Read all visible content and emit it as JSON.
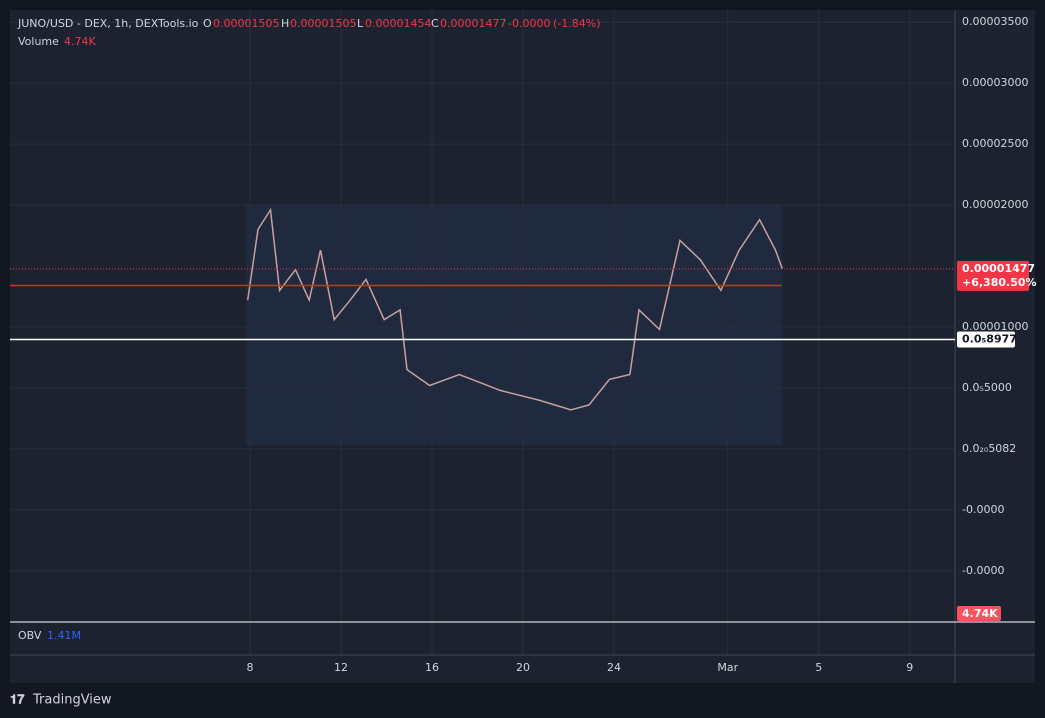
{
  "chart_data": {
    "type": "line",
    "legend": {
      "symbol": "JUNO/USD - DEX, 1h, DEXTools.io",
      "o_label": "O",
      "open": "0.00001505",
      "h_label": "H",
      "high": "0.00001505",
      "l_label": "L",
      "low": "0.00001454",
      "c_label": "C",
      "close": "0.00001477",
      "change": "-0.0000",
      "change_pct": "(-1.84%)",
      "volume_label": "Volume",
      "volume": "4.74K",
      "obv_label": "OBV",
      "obv": "1.41M"
    },
    "brand": "TradingView",
    "x": [
      7.9,
      8.35,
      8.9,
      9.3,
      10.0,
      10.6,
      11.1,
      11.7,
      12.4,
      13.1,
      13.9,
      14.6,
      14.9,
      15.9,
      17.2,
      19.0,
      20.7,
      22.1,
      22.9,
      23.8,
      24.7,
      25.1,
      26.0,
      26.9,
      27.8,
      28.7,
      29.5,
      30.4,
      31.1,
      31.4
    ],
    "series": [
      {
        "name": "JUNO/USD",
        "color": "#c8a0a0",
        "values": [
          1.22e-05,
          1.8e-05,
          1.96e-05,
          1.3e-05,
          1.47e-05,
          1.22e-05,
          1.63e-05,
          1.06e-05,
          1.22e-05,
          1.39e-05,
          1.06e-05,
          1.14e-05,
          6.5e-06,
          5.2e-06,
          6.1e-06,
          4.8e-06,
          4e-06,
          3.2e-06,
          3.6e-06,
          5.7e-06,
          6.1e-06,
          1.14e-05,
          9.8e-06,
          1.71e-05,
          1.55e-05,
          1.3e-05,
          1.63e-05,
          1.88e-05,
          1.63e-05,
          1.477e-05
        ]
      }
    ],
    "xlim": [
      -2.55,
      38.99
    ],
    "xticks": [
      8,
      12,
      16,
      20,
      24,
      {
        "value": 29,
        "label": "Mar"
      },
      {
        "value": 33,
        "label": "5"
      },
      {
        "value": 37,
        "label": "9"
      }
    ],
    "ylim": [
      -1.42e-05,
      3.6e-05
    ],
    "yticks": [
      {
        "value": 3.5e-05,
        "label": "0.00003500"
      },
      {
        "value": 3e-05,
        "label": "0.00003000"
      },
      {
        "value": 2.5e-05,
        "label": "0.00002500"
      },
      {
        "value": 2e-05,
        "label": "0.00002000"
      },
      {
        "value": 1e-05,
        "label": "0.00001000"
      },
      {
        "value": 5e-06,
        "label": "0.0₅5000"
      },
      {
        "value": 0,
        "label": "0.0₂₀5082"
      },
      {
        "value": -5e-06,
        "label": "-0.0000"
      },
      {
        "value": -1e-05,
        "label": "-0.0000"
      }
    ],
    "grid": true,
    "price_lines": [
      {
        "value": 1.477e-05,
        "label": "0.00001477",
        "change": "+6,380.50%",
        "color": "#f23645"
      },
      {
        "value": 8.977e-06,
        "label": "0.0₅8977",
        "color": "#ffffff"
      },
      {
        "value": 1.34e-05,
        "color": "#ff1a1a"
      }
    ],
    "volume_tag": "4.74K"
  }
}
